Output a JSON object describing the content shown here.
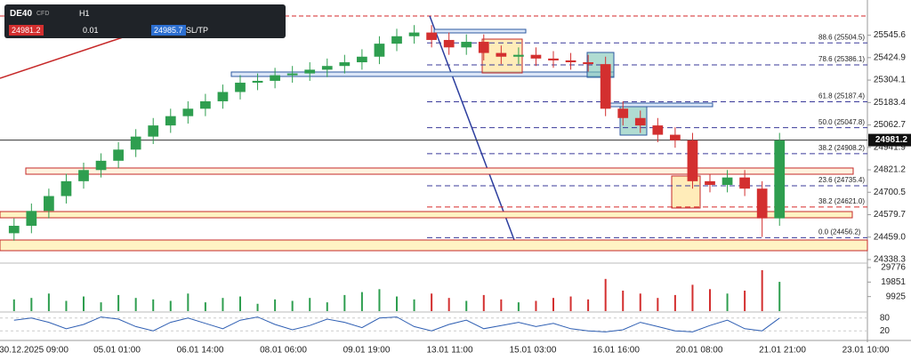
{
  "toolbar": {
    "symbol": "DE40",
    "kind": "CFD",
    "timeframe": "H1",
    "bid": "24981.2",
    "lot": "0.01",
    "ask": "24985.7",
    "sltp": "SL/TP"
  },
  "chart_data": {
    "type": "candlestick",
    "open": [
      24480,
      24520,
      24600,
      24680,
      24760,
      24820,
      24870,
      24930,
      25000,
      25060,
      25110,
      25150,
      25190,
      25240,
      25290,
      25300,
      25330,
      25340,
      25360,
      25380,
      25400,
      25430,
      25500,
      25540,
      25560,
      25520,
      25480,
      25510,
      25450,
      25430,
      25440,
      25420,
      25410,
      25400,
      25390,
      25150,
      25100,
      25060,
      25010,
      24980,
      24760,
      24740,
      24780,
      24720,
      24560
    ],
    "high": [
      24560,
      24640,
      24720,
      24800,
      24860,
      24910,
      24970,
      25040,
      25100,
      25150,
      25190,
      25230,
      25280,
      25330,
      25340,
      25370,
      25380,
      25400,
      25420,
      25440,
      25470,
      25540,
      25580,
      25600,
      25600,
      25560,
      25550,
      25550,
      25490,
      25480,
      25480,
      25460,
      25450,
      25440,
      25430,
      25190,
      25140,
      25100,
      25050,
      25020,
      24800,
      24820,
      24820,
      24760,
      25020
    ],
    "low": [
      24440,
      24480,
      24560,
      24640,
      24720,
      24780,
      24830,
      24890,
      24960,
      25020,
      25070,
      25110,
      25150,
      25200,
      25250,
      25260,
      25290,
      25300,
      25320,
      25340,
      25360,
      25390,
      25460,
      25500,
      25480,
      25440,
      25440,
      25410,
      25390,
      25390,
      25380,
      25370,
      25360,
      25350,
      25110,
      25060,
      25020,
      24970,
      24940,
      24720,
      24700,
      24700,
      24680,
      24460,
      24520
    ],
    "close": [
      24520,
      24600,
      24680,
      24760,
      24820,
      24870,
      24930,
      25000,
      25060,
      25110,
      25150,
      25190,
      25240,
      25290,
      25300,
      25330,
      25340,
      25360,
      25380,
      25400,
      25430,
      25500,
      25540,
      25560,
      25520,
      25480,
      25510,
      25450,
      25430,
      25440,
      25420,
      25410,
      25400,
      25390,
      25150,
      25100,
      25060,
      25010,
      24980,
      24760,
      24740,
      24780,
      24720,
      24560,
      24980
    ],
    "up_color": "#2e9e4f",
    "down_color": "#d32f2f",
    "ylim": [
      24324,
      25735
    ],
    "yticks": [
      25545.6,
      25424.9,
      25304.1,
      25183.4,
      25062.7,
      24941.9,
      24821.2,
      24700.5,
      24579.7,
      {
        "value": 24459,
        "label": "24459.0"
      },
      24338.3
    ],
    "current_price": 24981.2,
    "fib_levels": [
      {
        "label": "88.6 (25504.5)",
        "value": 25504.5,
        "color": "#3a3a9a"
      },
      {
        "label": "78.6 (25386.1)",
        "value": 25386.1,
        "color": "#3a3a9a"
      },
      {
        "label": "61.8 (25187.4)",
        "value": 25187.4,
        "color": "#3a3a9a"
      },
      {
        "label": "50.0 (25047.8)",
        "value": 25047.8,
        "color": "#3a3a9a"
      },
      {
        "label": "38.2 (24908.2)",
        "value": 24908.2,
        "color": "#3a3a9a"
      },
      {
        "label": "23.6 (24735.4)",
        "value": 24735.4,
        "color": "#3a3a9a"
      },
      {
        "label": "38.2 (24621.0)",
        "value": 24621.0,
        "color": "#d62728"
      },
      {
        "label": "0.0 (24456.2)",
        "value": 24456.2,
        "color": "#3a3a9a"
      }
    ],
    "time_labels": [
      "30.12.2025 09:00",
      "05.01 01:00",
      "06.01 14:00",
      "08.01 06:00",
      "09.01 19:00",
      "13.01 11:00",
      "15.01 03:00",
      "16.01 16:00",
      "20.01 08:00",
      "21.01 21:00",
      "23.01 10:00"
    ],
    "volume": {
      "values": [
        8000,
        9000,
        12000,
        7000,
        10000,
        6000,
        11000,
        9000,
        8000,
        7000,
        12000,
        6000,
        9000,
        10000,
        5000,
        8000,
        7000,
        9000,
        6000,
        11000,
        13000,
        15000,
        10000,
        8000,
        12000,
        9000,
        7000,
        11000,
        8000,
        6000,
        7000,
        9000,
        10000,
        8000,
        22000,
        14000,
        12000,
        9000,
        11000,
        18000,
        15000,
        12000,
        14000,
        28000,
        20000
      ],
      "ylim": [
        0,
        31600
      ],
      "yticks": [
        29776,
        19851,
        9925
      ]
    },
    "stochastic": {
      "values": [
        70,
        80,
        60,
        30,
        50,
        85,
        75,
        40,
        20,
        60,
        80,
        55,
        30,
        70,
        85,
        50,
        25,
        45,
        75,
        60,
        35,
        80,
        85,
        40,
        20,
        50,
        70,
        30,
        45,
        60,
        40,
        55,
        30,
        20,
        15,
        25,
        60,
        40,
        20,
        15,
        45,
        70,
        30,
        20,
        80
      ],
      "color": "#2f5fb3",
      "ylim": [
        0,
        100
      ],
      "yticks": [
        80,
        20
      ]
    }
  }
}
